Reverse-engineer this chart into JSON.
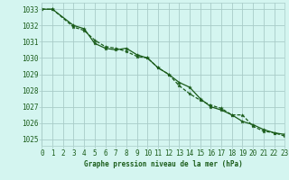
{
  "title": "Graphe pression niveau de la mer (hPa)",
  "bg_color": "#d4f5f0",
  "grid_color": "#a8ccc8",
  "line_color": "#1a5c1a",
  "xlim": [
    0,
    23
  ],
  "ylim": [
    1024.6,
    1033.4
  ],
  "yticks": [
    1025,
    1026,
    1027,
    1028,
    1029,
    1030,
    1031,
    1032,
    1033
  ],
  "xticks": [
    0,
    1,
    2,
    3,
    4,
    5,
    6,
    7,
    8,
    9,
    10,
    11,
    12,
    13,
    14,
    15,
    16,
    17,
    18,
    19,
    20,
    21,
    22,
    23
  ],
  "series1_x": [
    0,
    1,
    3,
    4,
    5,
    6,
    7,
    8,
    9,
    10,
    11,
    12,
    13,
    14,
    15,
    16,
    17,
    18,
    19,
    20,
    21,
    22,
    23
  ],
  "series1_y": [
    1033.0,
    1033.0,
    1032.0,
    1031.8,
    1030.9,
    1030.6,
    1030.5,
    1030.6,
    1030.2,
    1030.0,
    1029.4,
    1029.0,
    1028.5,
    1028.2,
    1027.5,
    1027.0,
    1026.8,
    1026.5,
    1026.1,
    1025.9,
    1025.6,
    1025.4,
    1025.3
  ],
  "series2_x": [
    0,
    1,
    3,
    4,
    5,
    6,
    7,
    8,
    9,
    10,
    11,
    12,
    13,
    14,
    15,
    16,
    17,
    18,
    19,
    20,
    21,
    22,
    23
  ],
  "series2_y": [
    1033.0,
    1033.0,
    1031.9,
    1031.7,
    1031.1,
    1030.7,
    1030.6,
    1030.4,
    1030.1,
    1030.0,
    1029.4,
    1029.0,
    1028.3,
    1027.8,
    1027.4,
    1027.1,
    1026.9,
    1026.5,
    1026.5,
    1025.8,
    1025.5,
    1025.4,
    1025.2
  ],
  "ylabel_fontsize": 5.5,
  "tick_fontsize": 5.5,
  "marker_size": 2.8,
  "line_width": 0.9
}
